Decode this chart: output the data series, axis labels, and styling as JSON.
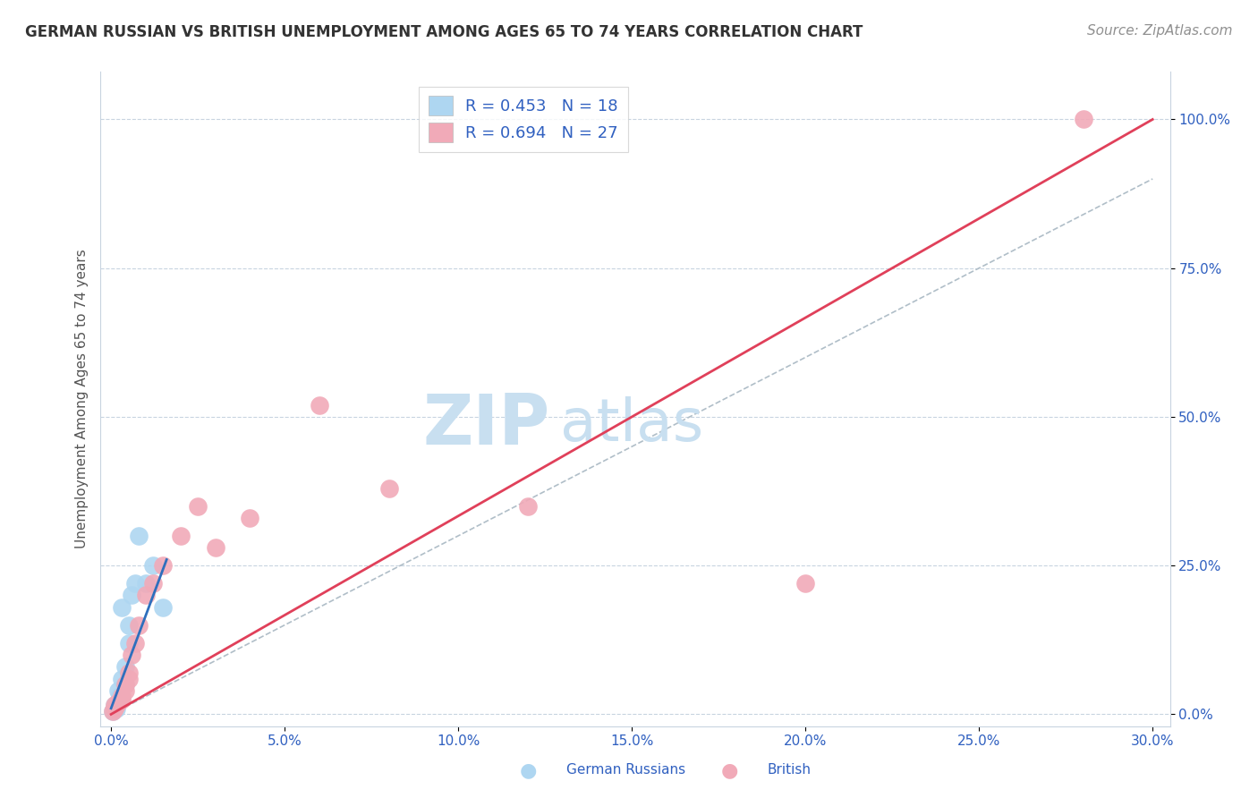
{
  "title": "GERMAN RUSSIAN VS BRITISH UNEMPLOYMENT AMONG AGES 65 TO 74 YEARS CORRELATION CHART",
  "source": "Source: ZipAtlas.com",
  "ylabel": "Unemployment Among Ages 65 to 74 years",
  "xlabel": "",
  "watermark_zip": "ZIP",
  "watermark_atlas": "atlas",
  "xlim": [
    -0.003,
    0.305
  ],
  "ylim": [
    -0.02,
    1.08
  ],
  "xticks": [
    0.0,
    0.05,
    0.1,
    0.15,
    0.2,
    0.25,
    0.3
  ],
  "xticklabels": [
    "0.0%",
    "5.0%",
    "10.0%",
    "15.0%",
    "20.0%",
    "25.0%",
    "30.0%"
  ],
  "yticks": [
    0.0,
    0.25,
    0.5,
    0.75,
    1.0
  ],
  "yticklabels": [
    "0.0%",
    "25.0%",
    "50.0%",
    "75.0%",
    "100.0%"
  ],
  "german_russian_color": "#aed6f1",
  "british_color": "#f1aab8",
  "german_russian_line_color": "#2e6fbd",
  "british_line_color": "#e0405a",
  "ref_line_color": "#b0bec8",
  "R_german": 0.453,
  "N_german": 18,
  "R_british": 0.694,
  "N_british": 27,
  "german_russian_x": [
    0.0005,
    0.001,
    0.0015,
    0.002,
    0.002,
    0.0025,
    0.003,
    0.003,
    0.004,
    0.004,
    0.005,
    0.005,
    0.006,
    0.007,
    0.008,
    0.01,
    0.012,
    0.015
  ],
  "german_russian_y": [
    0.005,
    0.015,
    0.01,
    0.02,
    0.04,
    0.03,
    0.06,
    0.18,
    0.05,
    0.08,
    0.12,
    0.15,
    0.2,
    0.22,
    0.3,
    0.22,
    0.25,
    0.18
  ],
  "british_x": [
    0.0005,
    0.001,
    0.001,
    0.0015,
    0.002,
    0.002,
    0.003,
    0.003,
    0.004,
    0.004,
    0.005,
    0.005,
    0.006,
    0.007,
    0.008,
    0.01,
    0.012,
    0.015,
    0.02,
    0.025,
    0.03,
    0.04,
    0.06,
    0.08,
    0.12,
    0.2,
    0.28
  ],
  "british_y": [
    0.005,
    0.01,
    0.015,
    0.015,
    0.02,
    0.02,
    0.025,
    0.03,
    0.04,
    0.05,
    0.06,
    0.07,
    0.1,
    0.12,
    0.15,
    0.2,
    0.22,
    0.25,
    0.3,
    0.35,
    0.28,
    0.33,
    0.52,
    0.38,
    0.35,
    0.22,
    1.0
  ],
  "british_line_x": [
    0.0,
    0.3
  ],
  "british_line_y": [
    0.0,
    1.0
  ],
  "german_line_x": [
    0.0,
    0.016
  ],
  "german_line_y": [
    0.01,
    0.26
  ],
  "ref_line_x": [
    0.0,
    0.3
  ],
  "ref_line_y": [
    0.0,
    0.9
  ],
  "background_color": "#ffffff",
  "grid_color": "#c8d4e0",
  "title_fontsize": 12,
  "axis_label_fontsize": 11,
  "tick_fontsize": 11,
  "legend_fontsize": 13,
  "watermark_fontsize": 56,
  "watermark_color": "#c8dff0",
  "source_fontsize": 11,
  "source_color": "#909090",
  "label_color": "#3060c0"
}
